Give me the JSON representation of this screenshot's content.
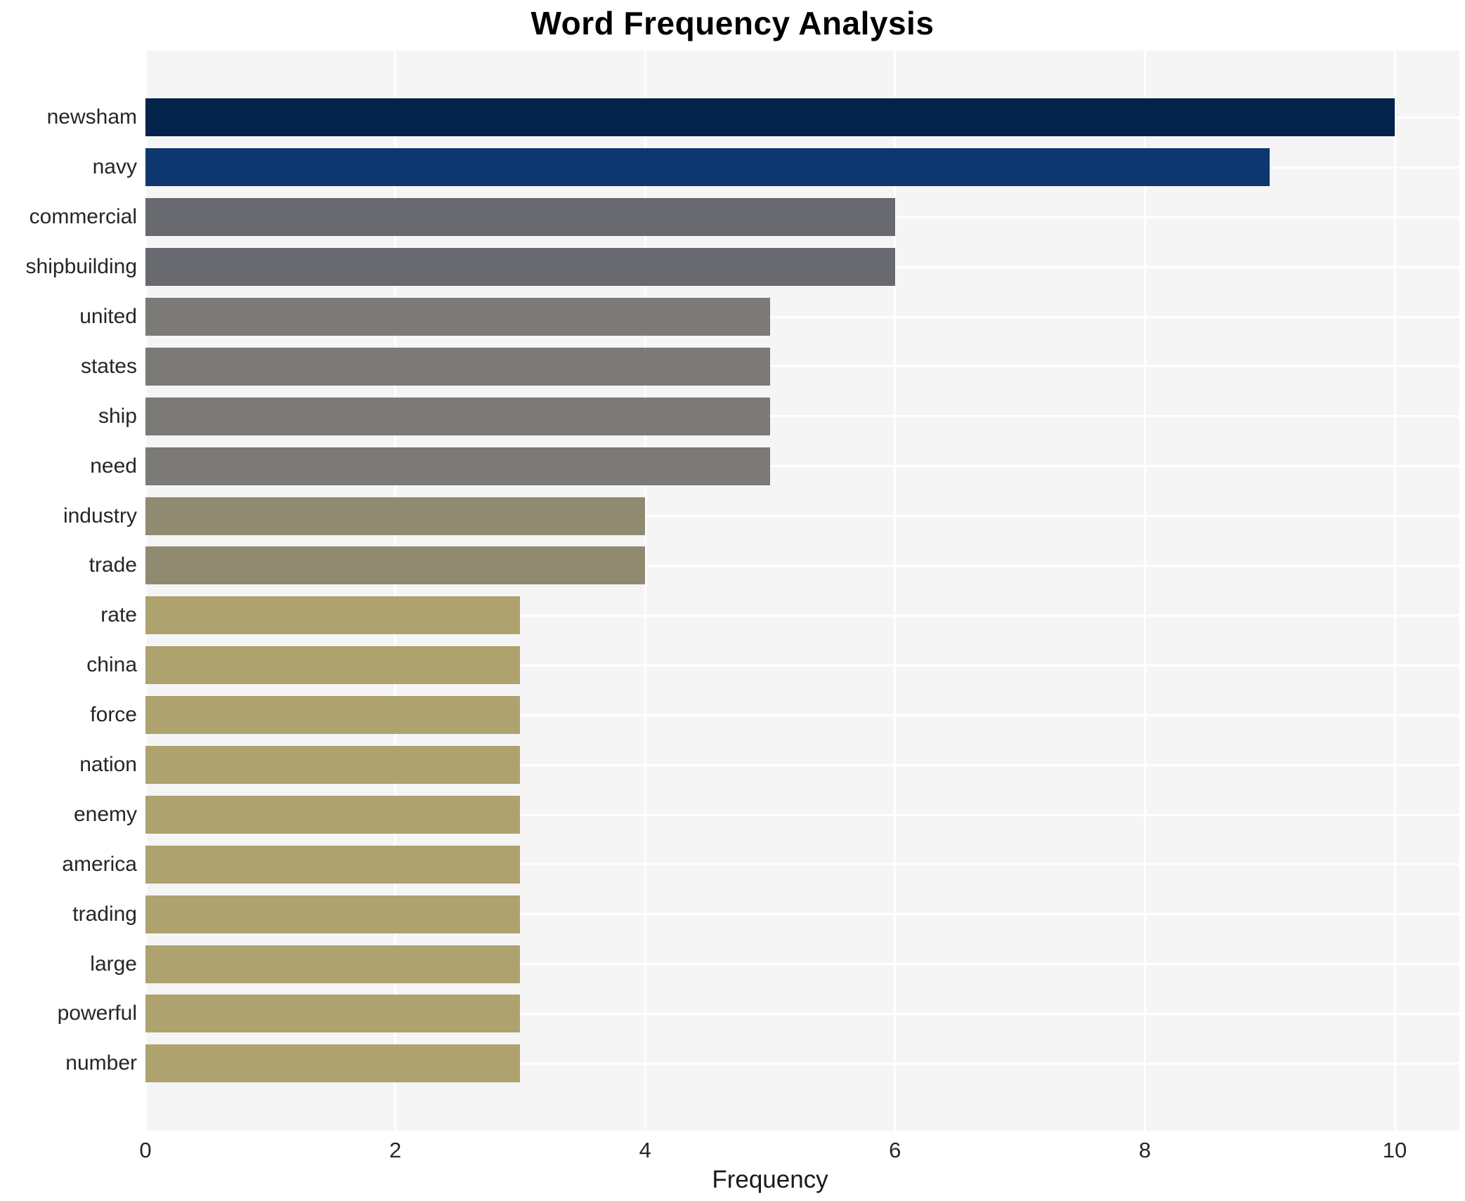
{
  "chart_data": {
    "type": "bar",
    "orientation": "horizontal",
    "title": "Word Frequency Analysis",
    "xlabel": "Frequency",
    "ylabel": "",
    "categories": [
      "newsham",
      "navy",
      "commercial",
      "shipbuilding",
      "united",
      "states",
      "ship",
      "need",
      "industry",
      "trade",
      "rate",
      "china",
      "force",
      "nation",
      "enemy",
      "america",
      "trading",
      "large",
      "powerful",
      "number"
    ],
    "values": [
      10,
      9,
      6,
      6,
      5,
      5,
      5,
      5,
      4,
      4,
      3,
      3,
      3,
      3,
      3,
      3,
      3,
      3,
      3,
      3
    ],
    "bar_colors": [
      "#04234b",
      "#0e3770",
      "#67696f",
      "#67696f",
      "#7b7a76",
      "#7b7a76",
      "#7b7a76",
      "#7b7a76",
      "#908a71",
      "#908a71",
      "#aea26e",
      "#aea26e",
      "#aea26e",
      "#aea26e",
      "#aea26e",
      "#aea26e",
      "#aea26e",
      "#aea26e",
      "#aea26e",
      "#aea26e"
    ],
    "xlim": [
      0,
      10
    ],
    "xticks": [
      0,
      2,
      4,
      6,
      8,
      10
    ],
    "xtick_labels": [
      "0",
      "2",
      "4",
      "6",
      "8",
      "10"
    ],
    "grid": true,
    "legend_position": "none",
    "plot_background": "#f5f5f6",
    "grid_color": "#ffffff",
    "tick_text_color": "#262626",
    "title_color": "#000000"
  }
}
